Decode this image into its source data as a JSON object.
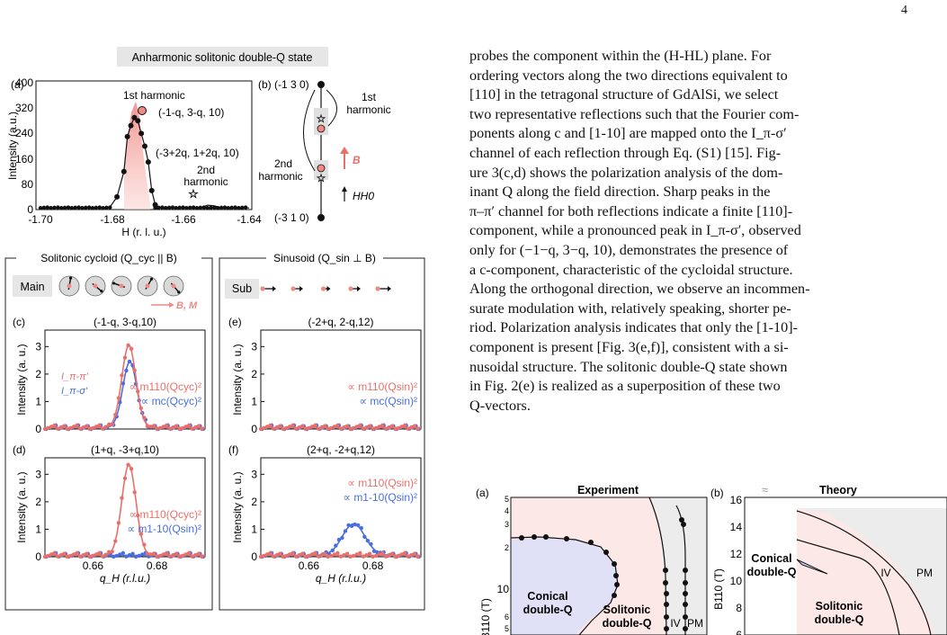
{
  "page_number": "4",
  "fig3": {
    "banner": "Anharmonic solitonic double-Q state",
    "a": {
      "label": "(a)",
      "ylabel": "Intensity (a.u.)",
      "xlabel": "H (r. l. u.)",
      "yticks": [
        "0",
        "80",
        "160",
        "240",
        "320",
        "400"
      ],
      "xticks": [
        "-1.70",
        "-1.68",
        "-1.66",
        "-1.64"
      ],
      "ann_1st": "1st harmonic",
      "ann_q1": "(-1-q, 3-q, 10)",
      "ann_q2": "(-3+2q, 1+2q, 10)",
      "ann_2nd_a": "2nd",
      "ann_2nd_b": "harmonic",
      "peak_x": [
        -1.7,
        -1.695,
        -1.69,
        -1.685,
        -1.68,
        -1.678,
        -1.676,
        -1.675,
        -1.674,
        -1.673,
        -1.672,
        -1.671,
        -1.67,
        -1.669,
        -1.668,
        -1.667,
        -1.666,
        -1.665,
        -1.662,
        -1.658,
        -1.654,
        -1.652,
        -1.65,
        -1.648,
        -1.644,
        -1.64
      ],
      "peak_y": [
        5,
        5,
        5,
        5,
        8,
        40,
        120,
        230,
        265,
        290,
        280,
        240,
        200,
        150,
        60,
        15,
        6,
        5,
        5,
        5,
        5,
        14,
        12,
        5,
        5,
        5
      ]
    },
    "b": {
      "label": "(b)",
      "top": "(-1 3 0)",
      "bottom": "(-3 1 0)",
      "h1a": "1st",
      "h1b": "harmonic",
      "h2a": "2nd",
      "h2b": "harmonic",
      "field": "B",
      "hh0": "HH0"
    },
    "cycloid_header": "Solitonic cycloid (Q_cyc || B)",
    "sinusoid_header": "Sinusoid (Q_sin ⊥ B)",
    "main_label": "Main",
    "sub_label": "Sub",
    "bm_label": "B, M",
    "c": {
      "label": "(c)",
      "title": "(-1-q, 3-q,10)",
      "l1": "I_π-π'",
      "l2": "I_π-σ'",
      "m1": "∝ m110(Qcyc)²",
      "m2": "∝ mc(Qcyc)²"
    },
    "d": {
      "label": "(d)",
      "title": "(1+q, -3+q,10)",
      "m1": "∝ m110(Qcyc)²",
      "m2": "∝ m1-10(Qsin)²"
    },
    "e": {
      "label": "(e)",
      "title": "(-2+q, 2-q,12)",
      "m1": "∝ m110(Qsin)²",
      "m2": "∝ mc(Qsin)²"
    },
    "f": {
      "label": "(f)",
      "title": "(2+q, -2+q,12)",
      "m1": "∝ m110(Qsin)²",
      "m2": "∝ m1-10(Qsin)²"
    },
    "ylabel_cd": "Intensity (a. u.)",
    "xlabel_q": "q_H (r.l.u.)",
    "yticks_small": [
      "0",
      "1",
      "2",
      "3"
    ],
    "xticks_small": [
      "0.66",
      "0.68"
    ],
    "colors": {
      "red": "#e8706b",
      "blue": "#4a6ee0",
      "pink": "#f4a7a3"
    }
  },
  "body_lines": [
    "probes the component within the (H-HL) plane. For",
    "ordering vectors along the two directions equivalent to",
    "[110] in the tetragonal structure of GdAlSi, we select",
    "two representative reflections such that the Fourier com-",
    "ponents along c and [1-10] are mapped onto the I_π-σ′",
    "channel of each reflection through Eq. (S1) [15]. Fig-",
    "ure 3(c,d) shows the polarization analysis of the dom-",
    "inant Q along the field direction. Sharp peaks in the",
    "π–π′ channel for both reflections indicate a finite [110]-",
    "component, while a pronounced peak in I_π-σ′, observed",
    "only for (−1−q, 3−q, 10), demonstrates the presence of",
    "a c-component, characteristic of the cycloidal structure.",
    "Along the orthogonal direction, we observe an incommen-",
    "surate modulation with, relatively speaking, shorter pe-",
    "riod. Polarization analysis indicates that only the [1-10]-",
    "component is present [Fig. 3(e,f)], consistent with a si-",
    "nusoidal structure. The solitonic double-Q state shown",
    "in Fig. 2(e) is realized as a superposition of these two",
    "Q-vectors."
  ],
  "fig4": {
    "a_label": "(a)",
    "b_label": "(b)",
    "exp_title": "Experiment",
    "theory_title": "Theory",
    "ylabel": "B110 (T)",
    "a_yticks": [
      "5",
      "4",
      "3",
      "2",
      "10",
      "6",
      "5"
    ],
    "b_yticks": [
      "16",
      "14",
      "12",
      "10",
      "8",
      "6"
    ],
    "conical_a": "Conical",
    "conical_b": "double-Q",
    "solitonic_a": "Solitonic",
    "solitonic_b": "double-Q",
    "iv": "IV",
    "pm": "PM"
  }
}
